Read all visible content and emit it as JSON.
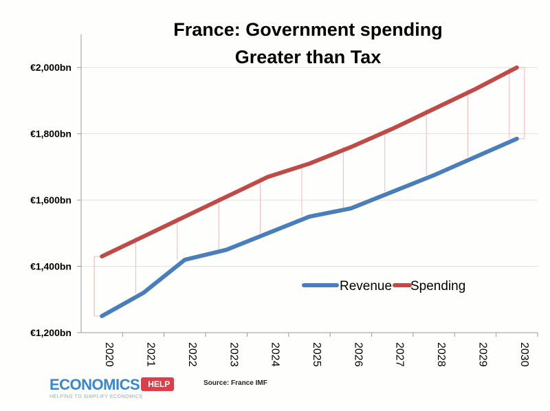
{
  "chart_data": {
    "type": "line",
    "title": [
      "France: Government spending",
      "Greater than Tax"
    ],
    "categories": [
      "2020",
      "2021",
      "2022",
      "2023",
      "2024",
      "2025",
      "2026",
      "2027",
      "2028",
      "2029",
      "2030"
    ],
    "series": [
      {
        "name": "Revenue",
        "color": "#4a7ebb",
        "values": [
          1250,
          1320,
          1420,
          1450,
          1500,
          1550,
          1575,
          1625,
          1675,
          1730,
          1785
        ]
      },
      {
        "name": "Spending",
        "color": "#be4b48",
        "values": [
          1430,
          1490,
          1550,
          1610,
          1670,
          1710,
          1760,
          1815,
          1875,
          1935,
          2000
        ]
      }
    ],
    "yticks": [
      1200,
      1400,
      1600,
      1800,
      2000
    ],
    "ytick_labels": [
      "€1,200bn",
      "€1,400bn",
      "€1,600bn",
      "€1,800bn",
      "€2,000bn"
    ],
    "ylim": [
      1200,
      2100
    ],
    "grid": true,
    "high_low_lines": true,
    "high_low_color": "#f2b8b8",
    "legend_placement": "center-right"
  },
  "source": "Source: France IMF",
  "logo": {
    "main": "ECONOMICS",
    "tag": "HELP",
    "sub": "HELPING TO SIMPLIFY ECONOMICS"
  }
}
